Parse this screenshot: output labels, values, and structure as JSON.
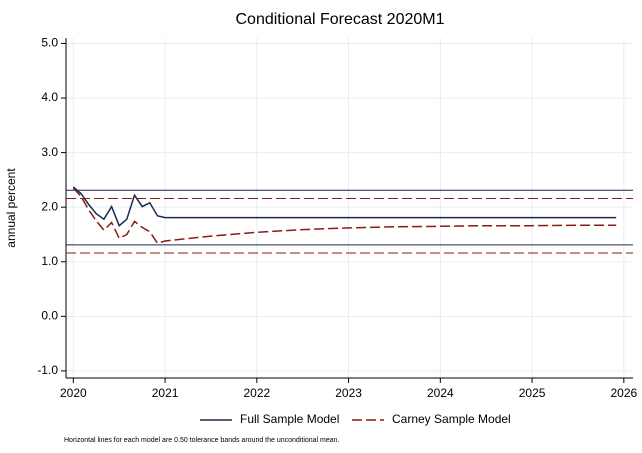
{
  "chart_data": {
    "type": "line",
    "title": "Conditional Forecast 2020M1",
    "y_label": "annual percent",
    "note": "Horizontal lines for each model are 0.50 tolerance bands around the unconditional mean.",
    "x": [
      2020.0,
      2020.083,
      2020.167,
      2020.25,
      2020.333,
      2020.417,
      2020.5,
      2020.583,
      2020.667,
      2020.75,
      2020.833,
      2020.917,
      2021.0,
      2021.5,
      2022.0,
      2022.5,
      2023.0,
      2023.5,
      2024.0,
      2024.5,
      2025.0,
      2025.5,
      2025.917
    ],
    "series": [
      {
        "name": "Full Sample Model",
        "color": "#1a2a4f",
        "dash": "none",
        "bands": [
          1.31,
          2.31
        ],
        "values": [
          2.37,
          2.25,
          2.05,
          1.88,
          1.78,
          2.01,
          1.66,
          1.78,
          2.22,
          2.01,
          2.08,
          1.84,
          1.81,
          1.81,
          1.81,
          1.81,
          1.81,
          1.81,
          1.81,
          1.81,
          1.81,
          1.81,
          1.81
        ]
      },
      {
        "name": "Carney Sample Model",
        "color": "#8b1a1a",
        "dash": "10,4",
        "bands": [
          1.16,
          2.16
        ],
        "values": [
          2.35,
          2.2,
          1.95,
          1.75,
          1.58,
          1.72,
          1.43,
          1.5,
          1.74,
          1.63,
          1.55,
          1.34,
          1.38,
          1.47,
          1.54,
          1.59,
          1.62,
          1.64,
          1.65,
          1.66,
          1.66,
          1.67,
          1.67
        ]
      }
    ],
    "xlim": [
      2019.92,
      2026.1
    ],
    "xticks": [
      2020,
      2021,
      2022,
      2023,
      2024,
      2025,
      2026
    ],
    "ylim": [
      -1.13,
      5.1
    ],
    "yticks": [
      {
        "value": -1,
        "label": "-1.0"
      },
      {
        "value": 0,
        "label": "0.0"
      },
      {
        "value": 1,
        "label": "1.0"
      },
      {
        "value": 2,
        "label": "2.0"
      },
      {
        "value": 3,
        "label": "3.0"
      },
      {
        "value": 4,
        "label": "4.0"
      },
      {
        "value": 5,
        "label": "5.0"
      }
    ],
    "grid": true
  }
}
